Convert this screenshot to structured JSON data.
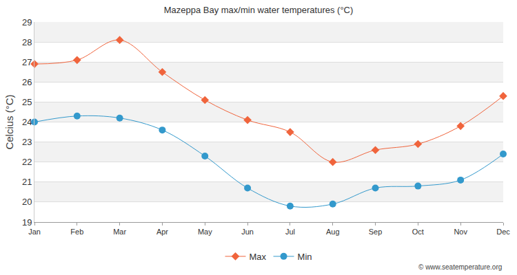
{
  "chart_data": {
    "type": "line",
    "title": "Mazeppa Bay max/min water temperatures (°C)",
    "y_label": "Celcius (°C)",
    "categories": [
      "Jan",
      "Feb",
      "Mar",
      "Apr",
      "May",
      "Jun",
      "Jul",
      "Aug",
      "Sep",
      "Oct",
      "Nov",
      "Dec"
    ],
    "series": [
      {
        "name": "Max",
        "color": "#f0643c",
        "marker": "diamond",
        "line_style": "solid",
        "values": [
          26.9,
          27.1,
          28.1,
          26.5,
          25.1,
          24.1,
          23.5,
          22.0,
          22.6,
          22.9,
          23.8,
          25.3
        ]
      },
      {
        "name": "Min",
        "color": "#3399cc",
        "marker": "circle",
        "line_style": "solid",
        "values": [
          24.0,
          24.3,
          24.2,
          23.6,
          22.3,
          20.7,
          19.8,
          19.9,
          20.7,
          20.8,
          21.1,
          22.4
        ]
      }
    ],
    "ylim": [
      19,
      29
    ],
    "yticks": [
      19,
      20,
      21,
      22,
      23,
      24,
      25,
      26,
      27,
      28,
      29
    ],
    "grid": true,
    "legend": "bottom",
    "annotations": [
      {
        "text": "© www.seatemperature.org"
      }
    ]
  }
}
